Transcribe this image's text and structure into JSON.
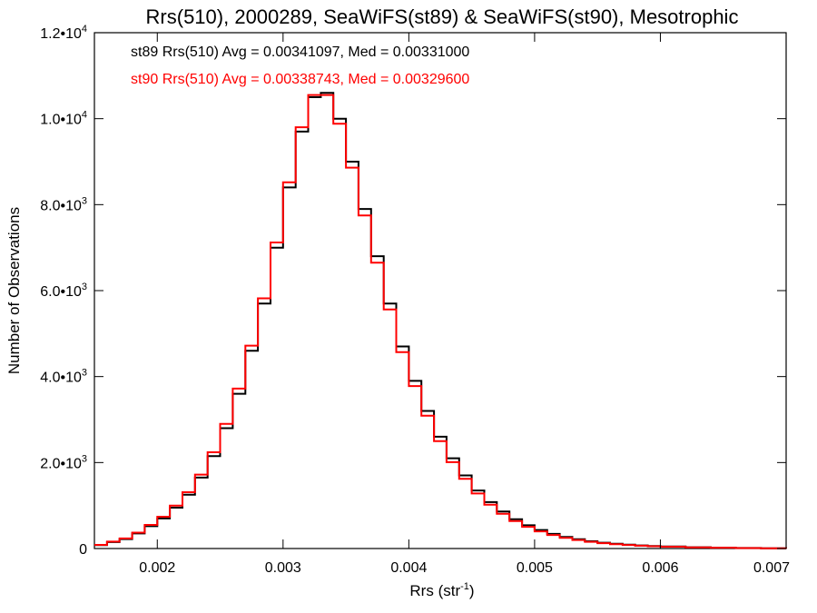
{
  "chart_data": {
    "type": "line",
    "title": "Rrs(510), 2000289, SeaWiFS(st89) & SeaWiFS(st90), Mesotrophic",
    "xlabel": "Rrs (str",
    "xlabel_sup": "-1",
    "xlabel_end": ")",
    "ylabel": "Number of Observations",
    "xlim": [
      0.0015,
      0.007
    ],
    "ylim": [
      0,
      12000
    ],
    "x_ticks": [
      {
        "value": 0.002,
        "label": "0.002"
      },
      {
        "value": 0.003,
        "label": "0.003"
      },
      {
        "value": 0.004,
        "label": "0.004"
      },
      {
        "value": 0.005,
        "label": "0.005"
      },
      {
        "value": 0.006,
        "label": "0.006"
      },
      {
        "value": 0.007,
        "label": "0.007"
      }
    ],
    "y_ticks": [
      {
        "value": 0,
        "label": "0",
        "exp": ""
      },
      {
        "value": 2000,
        "label": "2.0•10",
        "exp": "3"
      },
      {
        "value": 4000,
        "label": "4.0•10",
        "exp": "3"
      },
      {
        "value": 6000,
        "label": "6.0•10",
        "exp": "3"
      },
      {
        "value": 8000,
        "label": "8.0•10",
        "exp": "3"
      },
      {
        "value": 10000,
        "label": "1.0•10",
        "exp": "4"
      },
      {
        "value": 12000,
        "label": "1.2•10",
        "exp": "4"
      }
    ],
    "grid": false,
    "annotations": [
      "st89 Rrs(510) Avg = 0.00341097, Med = 0.00331000",
      "st90 Rrs(510) Avg = 0.00338743, Med = 0.00329600"
    ],
    "series": [
      {
        "color": "#000000",
        "x": [
          0.0015,
          0.0016,
          0.0017,
          0.0018,
          0.0019,
          0.002,
          0.0021,
          0.0022,
          0.0023,
          0.0024,
          0.0025,
          0.0026,
          0.0027,
          0.0028,
          0.0029,
          0.003,
          0.0031,
          0.0032,
          0.0033,
          0.0034,
          0.0035,
          0.0036,
          0.0037,
          0.0038,
          0.0039,
          0.004,
          0.0041,
          0.0042,
          0.0043,
          0.0044,
          0.0045,
          0.0046,
          0.0047,
          0.0048,
          0.0049,
          0.005,
          0.0051,
          0.0052,
          0.0053,
          0.0054,
          0.0055,
          0.0056,
          0.0057,
          0.0058,
          0.0059,
          0.006,
          0.0062,
          0.0064,
          0.0066,
          0.0068,
          0.007
        ],
        "y": [
          80,
          150,
          220,
          350,
          520,
          700,
          950,
          1250,
          1650,
          2150,
          2800,
          3600,
          4600,
          5700,
          7000,
          8400,
          9700,
          10500,
          10600,
          10000,
          9000,
          7900,
          6800,
          5700,
          4700,
          3900,
          3200,
          2600,
          2100,
          1700,
          1350,
          1080,
          860,
          680,
          540,
          430,
          340,
          270,
          215,
          170,
          135,
          110,
          90,
          72,
          58,
          46,
          30,
          20,
          12,
          7,
          3
        ]
      },
      {
        "color": "#ff0000",
        "x": [
          0.0015,
          0.0016,
          0.0017,
          0.0018,
          0.0019,
          0.002,
          0.0021,
          0.0022,
          0.0023,
          0.0024,
          0.0025,
          0.0026,
          0.0027,
          0.0028,
          0.0029,
          0.003,
          0.0031,
          0.0032,
          0.0033,
          0.0034,
          0.0035,
          0.0036,
          0.0037,
          0.0038,
          0.0039,
          0.004,
          0.0041,
          0.0042,
          0.0043,
          0.0044,
          0.0045,
          0.0046,
          0.0047,
          0.0048,
          0.0049,
          0.005,
          0.0051,
          0.0052,
          0.0053,
          0.0054,
          0.0055,
          0.0056,
          0.0057,
          0.0058,
          0.0059,
          0.006,
          0.0062,
          0.0064,
          0.0066,
          0.0068,
          0.007
        ],
        "y": [
          85,
          160,
          235,
          370,
          550,
          740,
          1000,
          1310,
          1720,
          2240,
          2900,
          3720,
          4720,
          5820,
          7120,
          8520,
          9800,
          10550,
          10550,
          9880,
          8860,
          7750,
          6650,
          5560,
          4570,
          3780,
          3090,
          2500,
          2010,
          1620,
          1280,
          1020,
          810,
          640,
          505,
          400,
          315,
          250,
          198,
          157,
          124,
          100,
          82,
          66,
          53,
          42,
          28,
          18,
          11,
          6,
          3
        ]
      }
    ]
  }
}
